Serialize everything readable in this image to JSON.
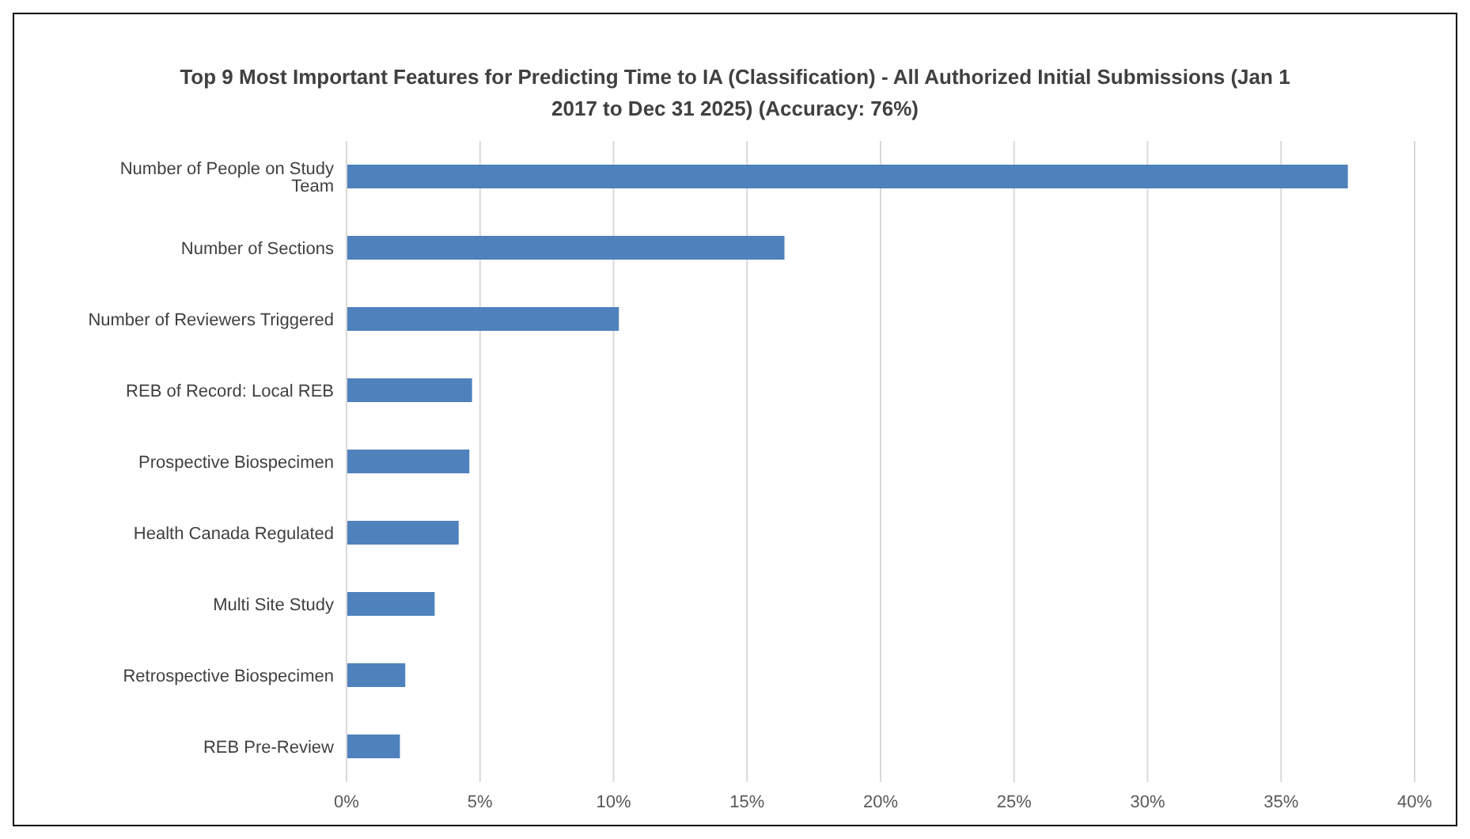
{
  "chart_data": {
    "type": "bar",
    "orientation": "horizontal",
    "title": "Top 9 Most Important Features for Predicting Time to IA (Classification) - All Authorized Initial Submissions (Jan 1 2017 to Dec 31 2025) (Accuracy: 76%)",
    "categories": [
      "Number of People on Study Team",
      "Number of Sections",
      "Number of Reviewers Triggered",
      "REB of Record: Local REB",
      "Prospective Biospecimen",
      "Health Canada Regulated",
      "Multi Site Study",
      "Retrospective Biospecimen",
      "REB Pre-Review"
    ],
    "values": [
      37.5,
      16.4,
      10.2,
      4.7,
      4.6,
      4.2,
      3.3,
      2.2,
      2.0
    ],
    "color": "#4f81bd",
    "xlim": [
      0,
      40
    ],
    "xticks": [
      {
        "value": 0,
        "label": "0%"
      },
      {
        "value": 5,
        "label": "5%"
      },
      {
        "value": 10,
        "label": "10%"
      },
      {
        "value": 15,
        "label": "15%"
      },
      {
        "value": 20,
        "label": "20%"
      },
      {
        "value": 25,
        "label": "25%"
      },
      {
        "value": 30,
        "label": "30%"
      },
      {
        "value": 35,
        "label": "35%"
      },
      {
        "value": 40,
        "label": "40%"
      }
    ],
    "grid": "x",
    "legend": false
  }
}
